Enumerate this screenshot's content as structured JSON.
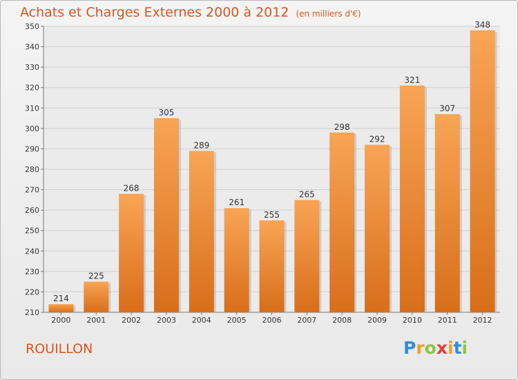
{
  "title": "Achats et Charges Externes 2000 à 2012",
  "subtitle": "(en milliers d'€)",
  "commune": "ROUILLON",
  "logo": {
    "letters": [
      "P",
      "r",
      "o",
      "x",
      "i",
      "t",
      "i"
    ],
    "colors": [
      "#2f8fd8",
      "#f0a020",
      "#8cc63f",
      "#e83d3d",
      "#f0a020",
      "#2f8fd8",
      "#8cc63f"
    ]
  },
  "colors": {
    "title": "#d9561e",
    "bar_top": "#f8a555",
    "bar_bottom": "#d86e1a",
    "grid": "#cfcfcf"
  },
  "chart_data": {
    "type": "bar",
    "categories": [
      "2000",
      "2001",
      "2002",
      "2003",
      "2004",
      "2005",
      "2006",
      "2007",
      "2008",
      "2009",
      "2010",
      "2011",
      "2012"
    ],
    "values": [
      214,
      225,
      268,
      305,
      289,
      261,
      255,
      265,
      298,
      292,
      321,
      307,
      348
    ],
    "ylim": [
      210,
      350
    ],
    "yticks": [
      210,
      220,
      230,
      240,
      250,
      260,
      270,
      280,
      290,
      300,
      310,
      320,
      330,
      340,
      350
    ],
    "grid": true
  }
}
